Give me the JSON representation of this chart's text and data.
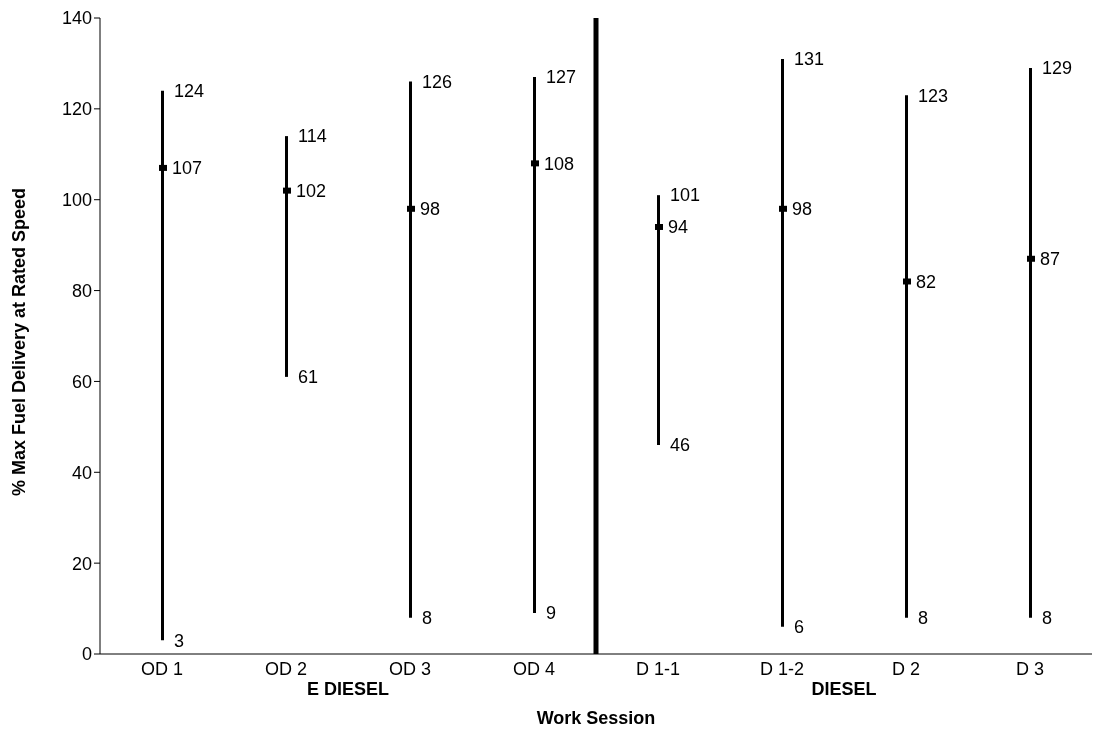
{
  "chart_data": {
    "type": "bar",
    "xlabel": "Work Session",
    "ylabel": "% Max Fuel Delivery at Rated Speed",
    "categories": [
      "OD 1",
      "OD 2",
      "OD 3",
      "OD 4",
      "D 1-1",
      "D 1-2",
      "D 2",
      "D 3"
    ],
    "ylim": [
      0,
      140
    ],
    "yticks": [
      0,
      20,
      40,
      60,
      80,
      100,
      120,
      140
    ],
    "grid": false,
    "legend": false,
    "series": [
      {
        "color": "#000000",
        "base": [
          3,
          61,
          8,
          9,
          46,
          6,
          8,
          8
        ],
        "values": [
          121,
          53,
          118,
          118,
          55,
          125,
          115,
          121
        ]
      },
      {
        "type": "scatter",
        "color": "#000000",
        "values": [
          107,
          102,
          98,
          108,
          94,
          98,
          82,
          87
        ],
        "value_labels": [
          "107",
          "102",
          "98",
          "108",
          "94",
          "98",
          "82",
          "87"
        ]
      }
    ],
    "annotations": [
      {
        "text": "124",
        "x": "OD 1",
        "y": 124
      },
      {
        "text": "3",
        "x": "OD 1",
        "y": 3
      },
      {
        "text": "114",
        "x": "OD 2",
        "y": 114
      },
      {
        "text": "61",
        "x": "OD 2",
        "y": 61
      },
      {
        "text": "126",
        "x": "OD 3",
        "y": 126
      },
      {
        "text": "8",
        "x": "OD 3",
        "y": 8
      },
      {
        "text": "127",
        "x": "OD 4",
        "y": 127
      },
      {
        "text": "9",
        "x": "OD 4",
        "y": 9
      },
      {
        "text": "101",
        "x": "D 1-1",
        "y": 101
      },
      {
        "text": "46",
        "x": "D 1-1",
        "y": 46
      },
      {
        "text": "131",
        "x": "D 1-2",
        "y": 131
      },
      {
        "text": "6",
        "x": "D 1-2",
        "y": 6
      },
      {
        "text": "123",
        "x": "D 2",
        "y": 123
      },
      {
        "text": "8",
        "x": "D 2",
        "y": 8
      },
      {
        "text": "129",
        "x": "D 3",
        "y": 129
      },
      {
        "text": "8",
        "x": "D 3",
        "y": 8
      },
      "E DIESEL",
      "DIESEL"
    ]
  }
}
